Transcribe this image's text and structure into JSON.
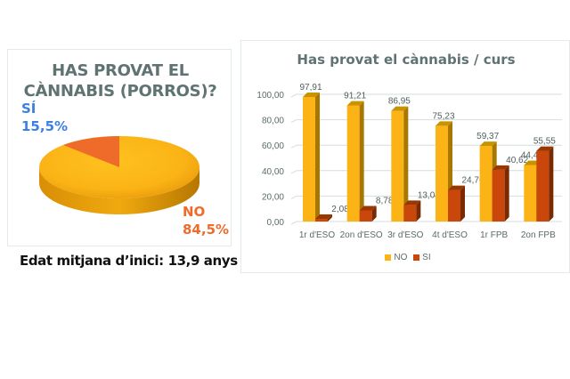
{
  "pie_chart": {
    "title_line1": "HAS PROVAT EL",
    "title_line2": "CÀNNABIS (PORROS)?",
    "si_label": "SÍ",
    "si_value": "15,5%",
    "no_label": "NO",
    "no_value": "84,5%"
  },
  "footnote": "Edat mitjana d’inici: 13,9 anys",
  "bar_chart": {
    "title": "Has provat el cànnabis / curs",
    "legend_no": "NO",
    "legend_si": "SI"
  },
  "colors": {
    "no": "#fbb316",
    "si": "#c9470a",
    "pie_si": "#ee6b2a",
    "title": "#5f7372",
    "si_label": "#3e7fe6",
    "no_label": "#ef6b2a"
  },
  "chart_data": [
    {
      "type": "pie",
      "title": "HAS PROVAT EL CÀNNABIS (PORROS)?",
      "labels": [
        "SÍ",
        "NO"
      ],
      "values": [
        15.5,
        84.5
      ],
      "unit": "%"
    },
    {
      "type": "bar",
      "title": "Has provat el cànnabis / curs",
      "categories": [
        "1r d'ESO",
        "2on d'ESO",
        "3r d'ESO",
        "4t d'ESO",
        "1r FPB",
        "2on FPB"
      ],
      "series": [
        {
          "name": "NO",
          "values": [
            97.91,
            91.21,
            86.95,
            75.23,
            59.37,
            44.44
          ]
        },
        {
          "name": "SI",
          "values": [
            2.08,
            8.78,
            13.04,
            24.76,
            40.62,
            55.55
          ]
        }
      ],
      "data_labels": {
        "NO": [
          "97,91",
          "91,21",
          "86,95",
          "75,23",
          "59,37",
          "44,44"
        ],
        "SI": [
          "2,08",
          "8,78",
          "13,04",
          "24,76",
          "40,62",
          "55,55"
        ]
      },
      "y_ticks": [
        "0,00",
        "20,00",
        "40,00",
        "60,00",
        "80,00",
        "100,00"
      ],
      "ylim": [
        0,
        100
      ],
      "xlabel": "",
      "ylabel": "",
      "grid": true,
      "legend_position": "bottom"
    }
  ]
}
